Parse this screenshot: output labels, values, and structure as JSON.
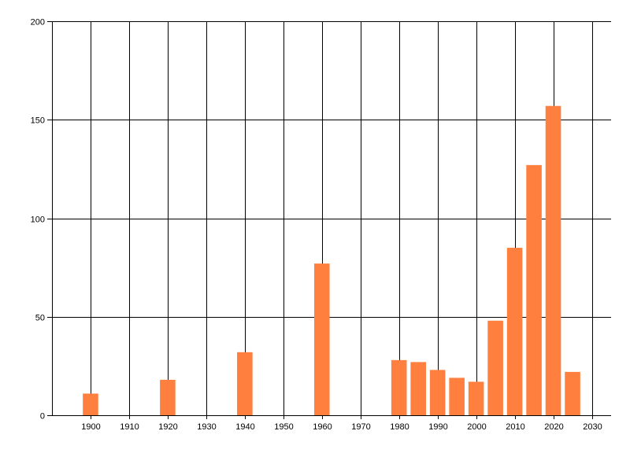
{
  "chart_data": {
    "type": "bar",
    "title": "",
    "xlabel": "",
    "ylabel": "",
    "x": [
      1900,
      1920,
      1940,
      1960,
      1980,
      1985,
      1990,
      1995,
      2000,
      2005,
      2010,
      2015,
      2020,
      2025
    ],
    "values": [
      11,
      18,
      32,
      77,
      28,
      27,
      23,
      19,
      17,
      48,
      85,
      127,
      157,
      22
    ],
    "xlim": [
      1890,
      2035
    ],
    "ylim": [
      0,
      200
    ],
    "x_ticks": [
      1900,
      1910,
      1920,
      1930,
      1940,
      1950,
      1960,
      1970,
      1980,
      1990,
      2000,
      2010,
      2020,
      2030
    ],
    "y_ticks": [
      0,
      50,
      100,
      150,
      200
    ],
    "grid": true,
    "colors": {
      "bar": "#ff7f3f",
      "grid": "#000000",
      "axis": "#000000"
    }
  }
}
